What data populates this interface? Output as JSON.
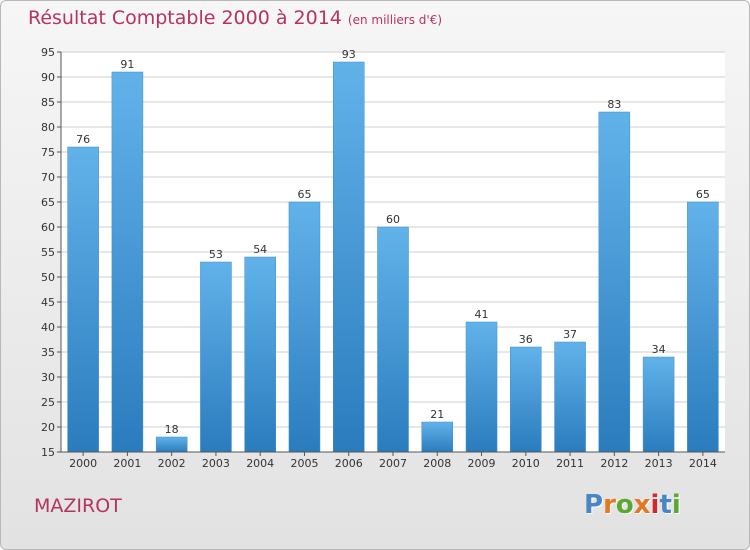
{
  "header": {
    "title": "Résultat Comptable 2000 à 2014",
    "subtitle": "(en milliers d'€)"
  },
  "footer": {
    "commune": "MAZIROT",
    "brand": "Proxiti",
    "brand_colors": [
      "#4a86c5",
      "#e2781f",
      "#5aa832",
      "#e2781f",
      "#d12a2a",
      "#4a86c5",
      "#5aa832"
    ]
  },
  "colors": {
    "title": "#b5345e",
    "bar_light": "#62b2ea",
    "bar_dark": "#2a7cbd",
    "grid": "#cfcfcf",
    "axis_text": "#333333"
  },
  "chart_data": {
    "type": "bar",
    "categories": [
      "2000",
      "2001",
      "2002",
      "2003",
      "2004",
      "2005",
      "2006",
      "2007",
      "2008",
      "2009",
      "2010",
      "2011",
      "2012",
      "2013",
      "2014"
    ],
    "values": [
      76,
      91,
      18,
      53,
      54,
      65,
      93,
      60,
      21,
      41,
      36,
      37,
      83,
      34,
      65
    ],
    "ylim": [
      15,
      95
    ],
    "yticks": [
      15,
      20,
      25,
      30,
      35,
      40,
      45,
      50,
      55,
      60,
      65,
      70,
      75,
      80,
      85,
      90,
      95
    ],
    "grid": true,
    "xlabel": "",
    "ylabel": ""
  }
}
